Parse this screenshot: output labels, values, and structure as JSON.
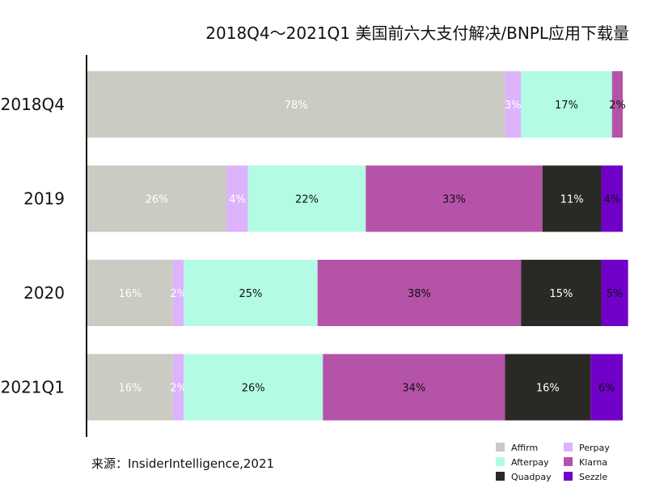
{
  "chart_data": {
    "type": "bar",
    "orientation": "horizontal",
    "stacked": true,
    "title": "2018Q4～2021Q1 美国前六大支付解决/BNPL应用下载量",
    "categories": [
      "2018Q4",
      "2019",
      "2020",
      "2021Q1"
    ],
    "series": [
      {
        "name": "Affirm",
        "color": "#cbcac3",
        "values": [
          78,
          26,
          16,
          16
        ],
        "labels": [
          "78%",
          "26%",
          "16%",
          "16%"
        ],
        "label_color": "#ffffff"
      },
      {
        "name": "Perpay",
        "color": "#ddb3fb",
        "values": [
          3,
          4,
          2,
          2
        ],
        "labels": [
          "3%",
          "4%",
          "2%",
          "2%"
        ],
        "label_color": "#ffffff"
      },
      {
        "name": "Afterpay",
        "color": "#b3fbe4",
        "values": [
          17,
          22,
          25,
          26
        ],
        "labels": [
          "17%",
          "22%",
          "25%",
          "26%"
        ],
        "label_color": "#111111"
      },
      {
        "name": "Klarna",
        "color": "#b553a9",
        "values": [
          2,
          33,
          38,
          34
        ],
        "labels": [
          "2%",
          "33%",
          "38%",
          "34%"
        ],
        "label_color": "#111111"
      },
      {
        "name": "Quadpay",
        "color": "#2a2926",
        "values": [
          0,
          11,
          15,
          16
        ],
        "labels": [
          "",
          "11%",
          "15%",
          "16%"
        ],
        "label_color": "#ffffff"
      },
      {
        "name": "Sezzle",
        "color": "#7100c9",
        "values": [
          0,
          4,
          5,
          6
        ],
        "labels": [
          "",
          "4%",
          "5%",
          "6%"
        ],
        "label_color": "#111111"
      }
    ],
    "xlim": [
      0,
      100
    ],
    "grid": false,
    "legend_position": "bottom-right"
  },
  "source": "来源：InsiderIntelligence,2021"
}
